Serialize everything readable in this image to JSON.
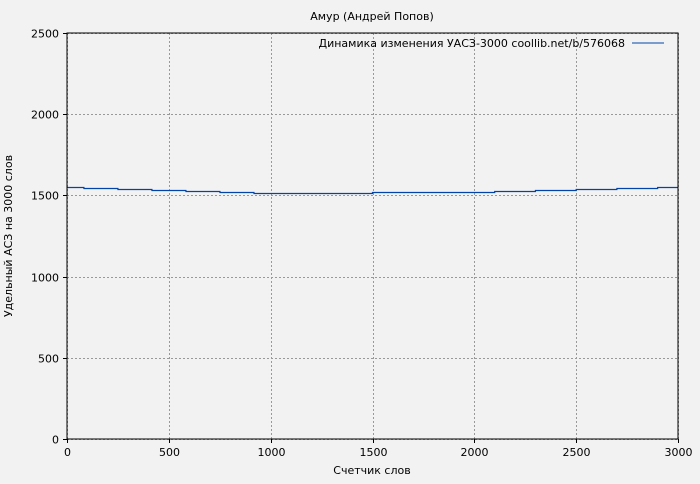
{
  "chart_data": {
    "type": "line",
    "title": "Амур (Андрей Попов)",
    "xlabel": "Счетчик слов",
    "ylabel": "Удельный АСЗ на 3000 слов",
    "xlim": [
      0,
      3000
    ],
    "ylim": [
      0,
      2500
    ],
    "xticks": [
      "0",
      "500",
      "1000",
      "1500",
      "2000",
      "2500",
      "3000"
    ],
    "yticks": [
      "0",
      "500",
      "1000",
      "1500",
      "2000",
      "2500"
    ],
    "grid": true,
    "legend_position": "top-right",
    "series": [
      {
        "name": "Динамика изменения УАСЗ-3000 coollib.net/b/576068",
        "color": "#0044aa",
        "step": true,
        "x": [
          0,
          83,
          250,
          417,
          584,
          751,
          918,
          1500,
          2100,
          2300,
          2500,
          2700,
          2900,
          3000
        ],
        "y": [
          1553,
          1547,
          1541,
          1535,
          1529,
          1522,
          1516,
          1522,
          1529,
          1535,
          1541,
          1547,
          1553,
          1553
        ]
      }
    ]
  }
}
